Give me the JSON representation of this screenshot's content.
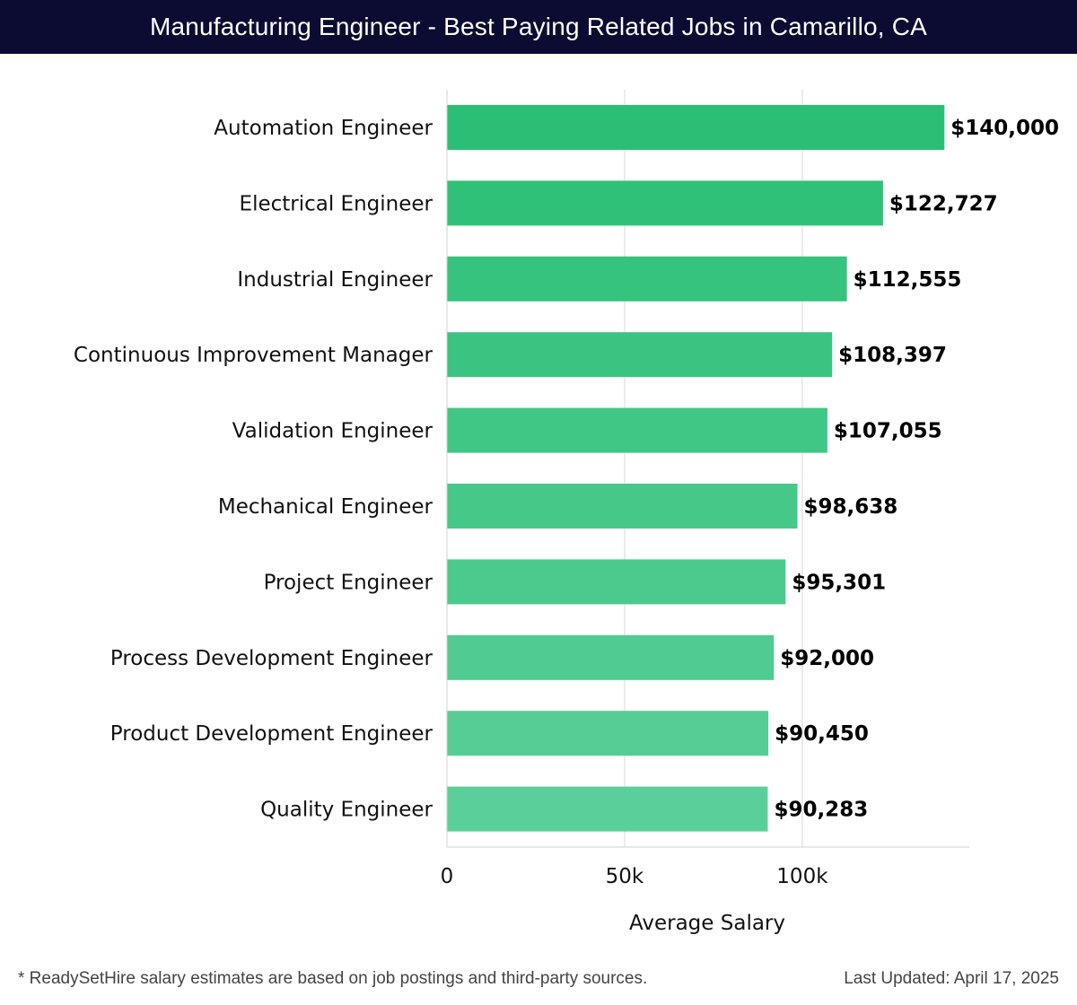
{
  "header": {
    "title": "Manufacturing Engineer - Best Paying Related Jobs in Camarillo, CA"
  },
  "chart_data": {
    "type": "bar",
    "orientation": "horizontal",
    "categories": [
      "Automation Engineer",
      "Electrical Engineer",
      "Industrial Engineer",
      "Continuous Improvement Manager",
      "Validation Engineer",
      "Mechanical Engineer",
      "Project Engineer",
      "Process Development Engineer",
      "Product Development Engineer",
      "Quality Engineer"
    ],
    "values": [
      140000,
      122727,
      112555,
      108397,
      107055,
      98638,
      95301,
      92000,
      90450,
      90283
    ],
    "value_labels": [
      "$140,000",
      "$122,727",
      "$112,555",
      "$108,397",
      "$107,055",
      "$98,638",
      "$95,301",
      "$92,000",
      "$90,450",
      "$90,283"
    ],
    "xlabel": "Average Salary",
    "xlim": [
      0,
      147000
    ],
    "x_ticks": [
      0,
      50000,
      100000
    ],
    "x_tick_labels": [
      "0",
      "50k",
      "100k"
    ],
    "grid": true,
    "colors": {
      "bar_top": "#2bbf75",
      "bar_bottom": "#5bcf99"
    }
  },
  "footer": {
    "note": "* ReadySetHire salary estimates are based on job postings and third-party sources.",
    "updated": "Last Updated: April 17, 2025"
  }
}
